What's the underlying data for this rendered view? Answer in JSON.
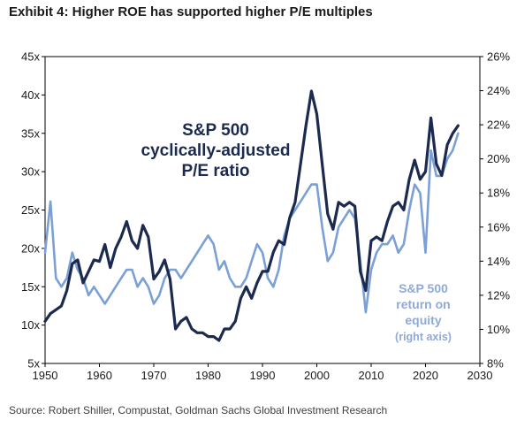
{
  "title": "Exhibit 4: Higher ROE has supported higher P/E multiples",
  "source": "Source: Robert Shiller, Compustat, Goldman Sachs Global Investment Research",
  "chart_data": {
    "type": "line",
    "x_ticks": [
      "1950",
      "1960",
      "1970",
      "1980",
      "1990",
      "2000",
      "2010",
      "2020",
      "2030"
    ],
    "xlim": [
      1950,
      2030
    ],
    "y_left_ticks": [
      "5x",
      "10x",
      "15x",
      "20x",
      "25x",
      "30x",
      "35x",
      "40x",
      "45x"
    ],
    "ylim_left": [
      5,
      45
    ],
    "y_right_ticks": [
      "8%",
      "10%",
      "12%",
      "14%",
      "16%",
      "18%",
      "20%",
      "22%",
      "24%",
      "26%"
    ],
    "ylim_right": [
      8,
      26
    ],
    "grid": false,
    "annotations": {
      "pe_label": [
        "S&P 500",
        "cyclically-adjusted",
        "P/E ratio"
      ],
      "roe_label": [
        "S&P 500",
        "return on",
        "equity",
        "(right axis)"
      ]
    },
    "series": [
      {
        "axis": "left",
        "color": "#1b2a4e",
        "x": [
          1950,
          1951,
          1952,
          1953,
          1954,
          1955,
          1956,
          1957,
          1958,
          1959,
          1960,
          1961,
          1962,
          1963,
          1964,
          1965,
          1966,
          1967,
          1968,
          1969,
          1970,
          1971,
          1972,
          1973,
          1974,
          1975,
          1976,
          1977,
          1978,
          1979,
          1980,
          1981,
          1982,
          1983,
          1984,
          1985,
          1986,
          1987,
          1988,
          1989,
          1990,
          1991,
          1992,
          1993,
          1994,
          1995,
          1996,
          1997,
          1998,
          1999,
          2000,
          2001,
          2002,
          2003,
          2004,
          2005,
          2006,
          2007,
          2008,
          2009,
          2010,
          2011,
          2012,
          2013,
          2014,
          2015,
          2016,
          2017,
          2018,
          2019,
          2020,
          2021,
          2022,
          2023,
          2024,
          2025,
          2026
        ],
        "values": [
          10.5,
          11.5,
          12,
          12.5,
          14.5,
          18,
          18.5,
          15.5,
          17,
          18.5,
          18.3,
          20.5,
          17.5,
          20,
          21.5,
          23.5,
          21,
          20,
          23,
          21.5,
          16,
          17,
          18.5,
          16,
          9.5,
          10.5,
          11,
          9.5,
          9,
          9,
          8.5,
          8.5,
          8,
          9.5,
          9.5,
          10.5,
          13.5,
          15,
          13.5,
          15.5,
          17,
          17,
          19.5,
          21,
          20.5,
          24,
          26,
          31,
          36,
          40.5,
          37.5,
          31,
          24.5,
          22.5,
          26,
          25.5,
          26,
          25.5,
          17,
          14.5,
          21,
          21.5,
          21,
          23.5,
          25.5,
          26,
          25,
          29,
          31.5,
          29,
          30,
          37,
          31,
          29.5,
          33.5,
          35,
          36
        ]
      },
      {
        "axis": "right",
        "color": "#7ba0d6",
        "x": [
          1950,
          1951,
          1952,
          1953,
          1954,
          1955,
          1956,
          1957,
          1958,
          1959,
          1960,
          1961,
          1962,
          1963,
          1964,
          1965,
          1966,
          1967,
          1968,
          1969,
          1970,
          1971,
          1972,
          1973,
          1974,
          1975,
          1976,
          1977,
          1978,
          1979,
          1980,
          1981,
          1982,
          1983,
          1984,
          1985,
          1986,
          1987,
          1988,
          1989,
          1990,
          1991,
          1992,
          1993,
          1994,
          1995,
          1996,
          1997,
          1998,
          1999,
          2000,
          2001,
          2002,
          2003,
          2004,
          2005,
          2006,
          2007,
          2008,
          2009,
          2010,
          2011,
          2012,
          2013,
          2014,
          2015,
          2016,
          2017,
          2018,
          2019,
          2020,
          2021,
          2022,
          2023,
          2024,
          2025,
          2026
        ],
        "values": [
          14.5,
          17.5,
          13,
          12.5,
          13,
          14.5,
          13.5,
          13,
          12,
          12.5,
          12,
          11.5,
          12,
          12.5,
          13,
          13.5,
          13.5,
          12.5,
          13,
          12.5,
          11.5,
          12,
          13,
          13.5,
          13.5,
          13,
          13.5,
          14,
          14.5,
          15,
          15.5,
          15,
          13.5,
          14,
          13,
          12.5,
          12.5,
          13,
          14,
          15,
          14.5,
          13,
          12.5,
          13.5,
          15.5,
          16.5,
          17,
          17.5,
          18,
          18.5,
          18.5,
          16,
          14,
          14.5,
          16,
          16.5,
          17,
          16.5,
          14,
          11,
          13.5,
          14.5,
          15,
          15,
          15.5,
          14.5,
          15,
          17,
          18.5,
          18,
          14.5,
          20.5,
          19,
          19,
          20,
          20.5,
          21.5
        ]
      }
    ]
  }
}
